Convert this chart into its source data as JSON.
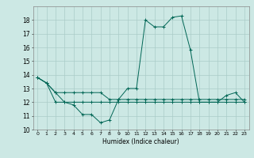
{
  "title": "",
  "xlabel": "Humidex (Indice chaleur)",
  "xlim": [
    -0.5,
    23.5
  ],
  "ylim": [
    10,
    19
  ],
  "yticks": [
    10,
    11,
    12,
    13,
    14,
    15,
    16,
    17,
    18
  ],
  "xticks": [
    0,
    1,
    2,
    3,
    4,
    5,
    6,
    7,
    8,
    9,
    10,
    11,
    12,
    13,
    14,
    15,
    16,
    17,
    18,
    19,
    20,
    21,
    22,
    23
  ],
  "bg_color": "#cce8e4",
  "grid_color": "#aaccc8",
  "line_color": "#006655",
  "lines": [
    [
      13.8,
      13.4,
      12.7,
      12.0,
      11.8,
      11.1,
      11.1,
      10.5,
      10.7,
      12.2,
      13.0,
      13.0,
      18.0,
      17.5,
      17.5,
      18.2,
      18.3,
      15.8,
      12.0,
      12.0,
      12.0,
      12.5,
      12.7,
      12.0
    ],
    [
      13.8,
      13.4,
      12.7,
      12.7,
      12.7,
      12.7,
      12.7,
      12.7,
      12.2,
      12.2,
      12.2,
      12.2,
      12.2,
      12.2,
      12.2,
      12.2,
      12.2,
      12.2,
      12.2,
      12.2,
      12.2,
      12.2,
      12.2,
      12.2
    ],
    [
      13.8,
      13.4,
      12.0,
      12.0,
      12.0,
      12.0,
      12.0,
      12.0,
      12.0,
      12.0,
      12.0,
      12.0,
      12.0,
      12.0,
      12.0,
      12.0,
      12.0,
      12.0,
      12.0,
      12.0,
      12.0,
      12.0,
      12.0,
      12.0
    ]
  ]
}
